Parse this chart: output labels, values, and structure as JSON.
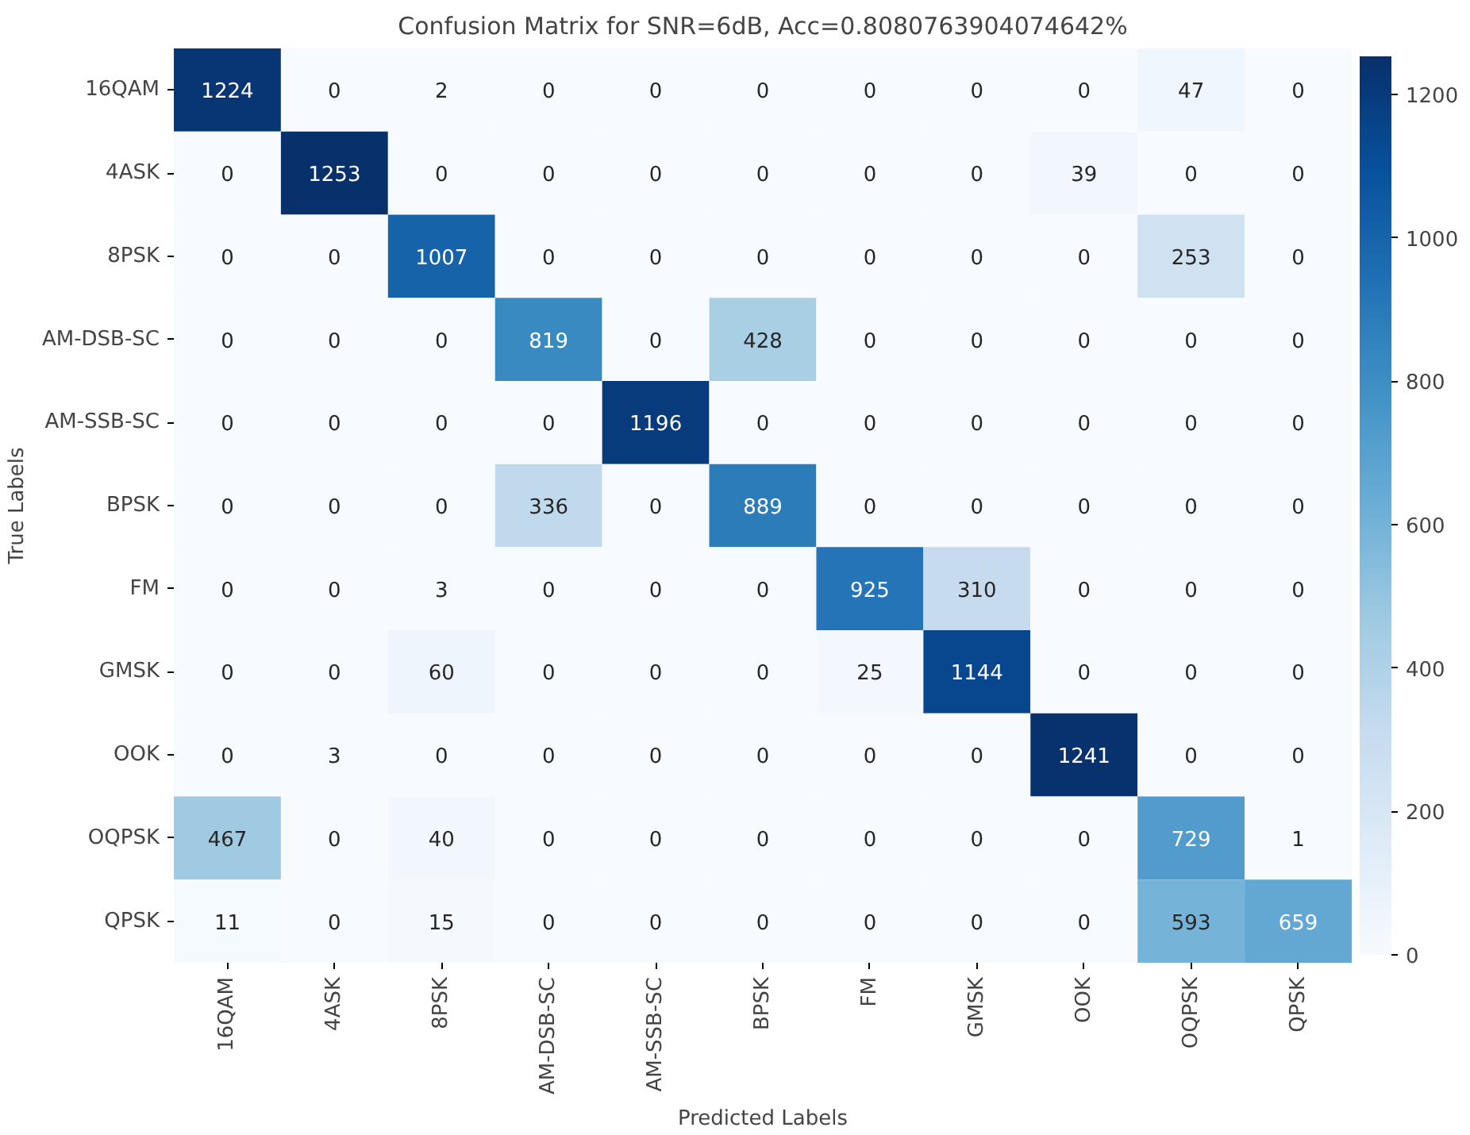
{
  "chart_data": {
    "type": "heatmap",
    "title": "Confusion Matrix for SNR=6dB, Acc=0.8080763904074642%",
    "xlabel": "Predicted Labels",
    "ylabel": "True Labels",
    "categories": [
      "16QAM",
      "4ASK",
      "8PSK",
      "AM-DSB-SC",
      "AM-SSB-SC",
      "BPSK",
      "FM",
      "GMSK",
      "OOK",
      "OQPSK",
      "QPSK"
    ],
    "y_categories": [
      "16QAM",
      "4ASK",
      "8PSK",
      "AM-DSB-SC",
      "AM-SSB-SC",
      "BPSK",
      "FM",
      "GMSK",
      "OOK",
      "OQPSK",
      "QPSK"
    ],
    "cells": [
      [
        1224,
        0,
        2,
        0,
        0,
        0,
        0,
        0,
        0,
        47,
        0
      ],
      [
        0,
        1253,
        0,
        0,
        0,
        0,
        0,
        0,
        39,
        0,
        0
      ],
      [
        0,
        0,
        1007,
        0,
        0,
        0,
        0,
        0,
        0,
        253,
        0
      ],
      [
        0,
        0,
        0,
        819,
        0,
        428,
        0,
        0,
        0,
        0,
        0
      ],
      [
        0,
        0,
        0,
        0,
        1196,
        0,
        0,
        0,
        0,
        0,
        0
      ],
      [
        0,
        0,
        0,
        336,
        0,
        889,
        0,
        0,
        0,
        0,
        0
      ],
      [
        0,
        0,
        3,
        0,
        0,
        0,
        925,
        310,
        0,
        0,
        0
      ],
      [
        0,
        0,
        60,
        0,
        0,
        0,
        25,
        1144,
        0,
        0,
        0
      ],
      [
        0,
        3,
        0,
        0,
        0,
        0,
        0,
        0,
        1241,
        0,
        0
      ],
      [
        467,
        0,
        40,
        0,
        0,
        0,
        0,
        0,
        0,
        729,
        1
      ],
      [
        11,
        0,
        15,
        0,
        0,
        0,
        0,
        0,
        0,
        593,
        659
      ]
    ],
    "clim": [
      0,
      1253
    ],
    "cticks": [
      0,
      200,
      400,
      600,
      800,
      1000,
      1200
    ],
    "data_labels": true
  }
}
